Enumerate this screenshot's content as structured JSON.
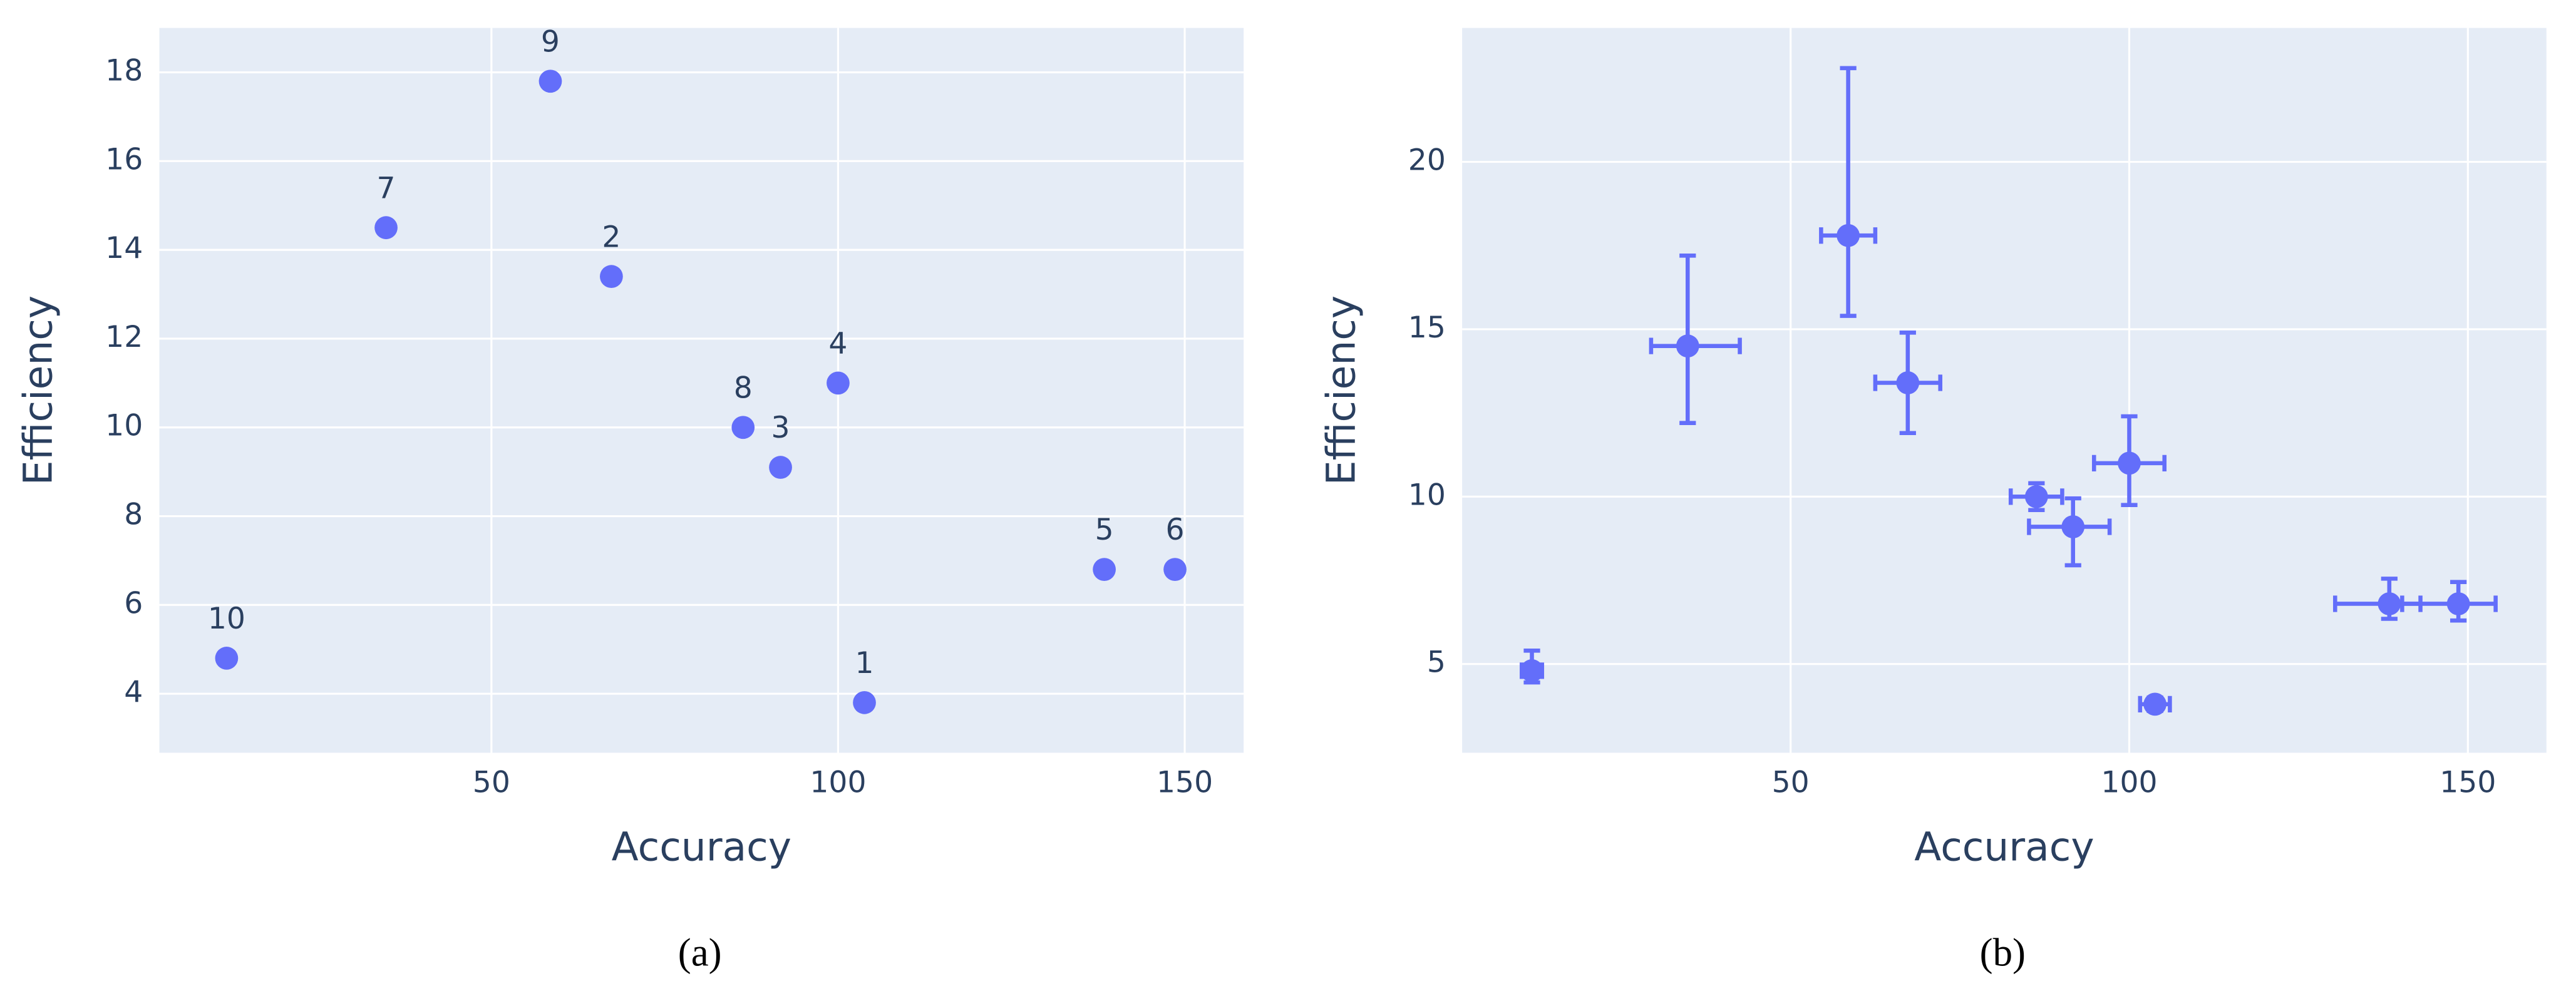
{
  "chart_data": [
    {
      "type": "scatter",
      "caption": "(a)",
      "x_label": "Accuracy",
      "y_label": "Efficiency",
      "xlim": [
        2.1,
        158.5
      ],
      "ylim": [
        2.67,
        19.0
      ],
      "xticks": [
        50,
        100,
        150
      ],
      "yticks": [
        4,
        6,
        8,
        10,
        12,
        14,
        16,
        18
      ],
      "grid": true,
      "labels": [
        "1",
        "2",
        "3",
        "4",
        "5",
        "6",
        "7",
        "8",
        "9",
        "10"
      ],
      "series": [
        {
          "color": "#636efa",
          "x": [
            103.8,
            67.3,
            91.7,
            100,
            138.4,
            148.6,
            34.8,
            86.3,
            58.5,
            11.8
          ],
          "values": [
            3.8,
            13.4,
            9.1,
            11.0,
            6.8,
            6.8,
            14.5,
            10.0,
            17.8,
            4.8
          ]
        }
      ]
    },
    {
      "type": "errorscatter",
      "caption": "(b)",
      "x_label": "Accuracy",
      "y_label": "Efficiency",
      "xlim": [
        1.5,
        161.6
      ],
      "ylim": [
        2.35,
        24.0
      ],
      "xticks": [
        50,
        100,
        150
      ],
      "yticks": [
        5,
        10,
        15,
        20
      ],
      "grid": true,
      "series": [
        {
          "color": "#636efa",
          "x": [
            103.8,
            67.3,
            91.7,
            100,
            138.4,
            148.6,
            34.8,
            86.3,
            58.5,
            11.8
          ],
          "values": [
            3.8,
            13.4,
            9.1,
            11.0,
            6.8,
            6.8,
            14.5,
            10.0,
            17.8,
            4.8
          ],
          "error_y_plus": [
            0.2,
            1.5,
            0.85,
            1.4,
            0.75,
            0.65,
            2.7,
            0.4,
            5.0,
            0.6
          ],
          "error_y_minus": [
            0.2,
            1.5,
            1.15,
            1.25,
            0.45,
            0.5,
            2.3,
            0.4,
            2.4,
            0.35
          ],
          "error_x_plus": [
            2.2,
            4.8,
            5.4,
            5.2,
            4.6,
            5.5,
            7.7,
            3.8,
            4.0,
            1.5
          ],
          "error_x_minus": [
            2.2,
            4.8,
            6.5,
            5.2,
            8.0,
            8.3,
            5.4,
            3.8,
            4.0,
            1.5
          ]
        }
      ]
    }
  ]
}
